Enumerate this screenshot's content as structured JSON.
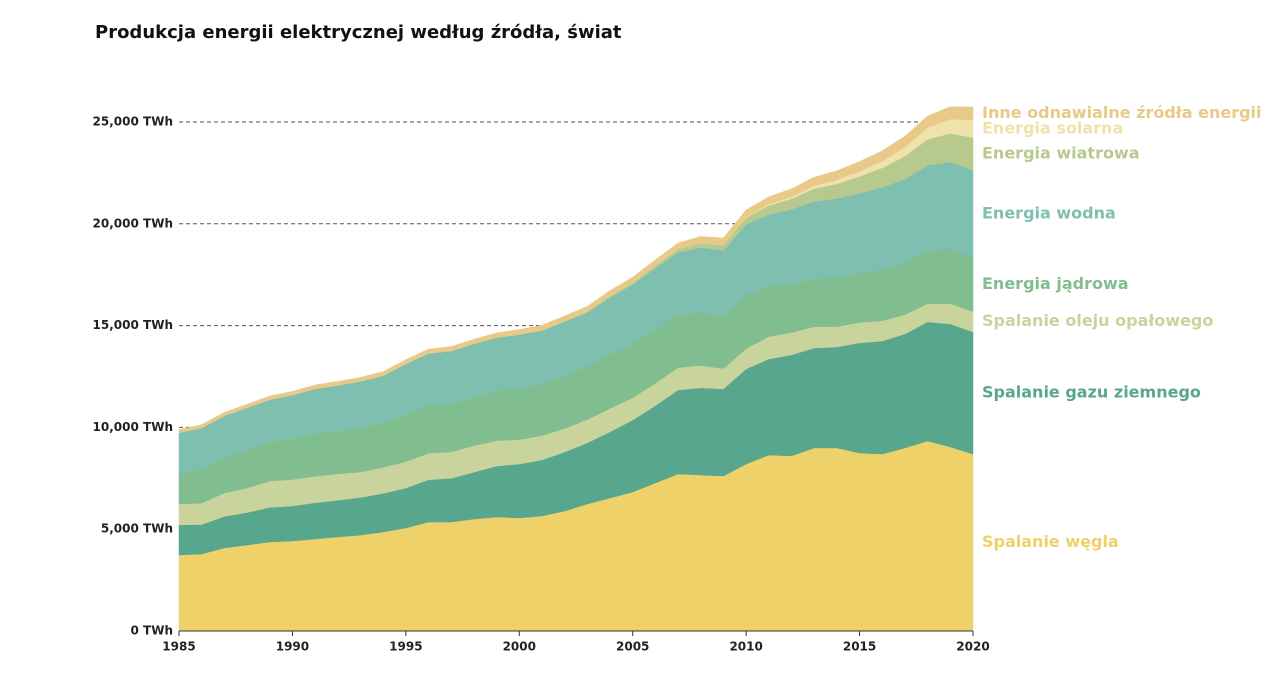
{
  "chart_data": {
    "type": "stacked-area",
    "title": "Produkcja energii elektrycznej według źródła, świat",
    "x": [
      1985,
      1986,
      1987,
      1988,
      1989,
      1990,
      1991,
      1992,
      1993,
      1994,
      1995,
      1996,
      1997,
      1998,
      1999,
      2000,
      2001,
      2002,
      2003,
      2004,
      2005,
      2006,
      2007,
      2008,
      2009,
      2010,
      2011,
      2012,
      2013,
      2014,
      2015,
      2016,
      2017,
      2018,
      2019,
      2020
    ],
    "xlim": [
      1985,
      2020
    ],
    "xticks": [
      1985,
      1990,
      1995,
      2000,
      2005,
      2010,
      2015,
      2020
    ],
    "ylim": [
      0,
      25000
    ],
    "yticks": [
      {
        "value": 0,
        "label": "0 TWh"
      },
      {
        "value": 5000,
        "label": "5,000 TWh"
      },
      {
        "value": 10000,
        "label": "10,000 TWh"
      },
      {
        "value": 15000,
        "label": "15,000 TWh"
      },
      {
        "value": 20000,
        "label": "20,000 TWh"
      },
      {
        "value": 25000,
        "label": "25,000 TWh"
      }
    ],
    "grid": true,
    "series": [
      {
        "name": "Spalanie węgla",
        "color": "#efd16a",
        "values": [
          3730,
          3780,
          4080,
          4220,
          4370,
          4420,
          4520,
          4620,
          4710,
          4860,
          5060,
          5350,
          5350,
          5500,
          5600,
          5550,
          5650,
          5890,
          6240,
          6530,
          6830,
          7270,
          7710,
          7660,
          7610,
          8200,
          8640,
          8600,
          8990,
          8990,
          8740,
          8690,
          8990,
          9330,
          9040,
          8690
        ]
      },
      {
        "name": "Spalanie gazu ziemnego",
        "color": "#58a68e",
        "values": [
          1480,
          1450,
          1550,
          1600,
          1700,
          1720,
          1780,
          1800,
          1850,
          1900,
          1960,
          2080,
          2150,
          2300,
          2500,
          2650,
          2750,
          2900,
          3000,
          3250,
          3530,
          3800,
          4130,
          4280,
          4280,
          4670,
          4720,
          4960,
          4910,
          4960,
          5410,
          5550,
          5600,
          5850,
          6040,
          6000
        ]
      },
      {
        "name": "Spalanie oleju opałowego",
        "color": "#c9d39c",
        "values": [
          1030,
          1050,
          1150,
          1200,
          1300,
          1300,
          1300,
          1300,
          1250,
          1280,
          1300,
          1300,
          1300,
          1300,
          1250,
          1200,
          1200,
          1150,
          1150,
          1150,
          1100,
          1100,
          1100,
          1100,
          1000,
          1000,
          1100,
          1100,
          1050,
          1000,
          1000,
          1000,
          950,
          900,
          1000,
          1000
        ]
      },
      {
        "name": "Energia jądrowa",
        "color": "#80bd8f",
        "values": [
          1500,
          1650,
          1750,
          1850,
          1900,
          2000,
          2100,
          2100,
          2150,
          2200,
          2300,
          2350,
          2350,
          2400,
          2450,
          2500,
          2550,
          2600,
          2600,
          2650,
          2650,
          2650,
          2600,
          2600,
          2550,
          2650,
          2500,
          2350,
          2350,
          2400,
          2450,
          2500,
          2550,
          2600,
          2700,
          2650
        ]
      },
      {
        "name": "Energia wodna",
        "color": "#7fbfb0",
        "values": [
          2000,
          2050,
          2050,
          2100,
          2100,
          2150,
          2200,
          2250,
          2300,
          2300,
          2500,
          2550,
          2600,
          2600,
          2600,
          2650,
          2600,
          2650,
          2650,
          2800,
          2900,
          3000,
          3050,
          3200,
          3250,
          3450,
          3500,
          3700,
          3800,
          3900,
          3900,
          4050,
          4100,
          4200,
          4250,
          4300
        ]
      },
      {
        "name": "Energia wiatrowa",
        "color": "#b8c98e",
        "values": [
          0,
          0,
          0,
          0,
          0,
          4,
          4,
          5,
          6,
          7,
          8,
          9,
          12,
          16,
          21,
          31,
          38,
          52,
          63,
          85,
          104,
          132,
          171,
          221,
          276,
          342,
          437,
          521,
          636,
          712,
          831,
          957,
          1135,
          1269,
          1414,
          1592
        ]
      },
      {
        "name": "Energia solarna",
        "color": "#efe2ab",
        "values": [
          0,
          0,
          0,
          0,
          0,
          0,
          0,
          0,
          0,
          0,
          0,
          0,
          0,
          0,
          0,
          0,
          0,
          0,
          0,
          0,
          4,
          6,
          8,
          12,
          20,
          32,
          63,
          97,
          134,
          190,
          251,
          327,
          443,
          576,
          704,
          855
        ]
      },
      {
        "name": "Inne odnawialne źródła energii",
        "color": "#e8c987",
        "values": [
          150,
          155,
          160,
          165,
          170,
          175,
          180,
          185,
          190,
          195,
          200,
          205,
          210,
          215,
          220,
          225,
          230,
          235,
          245,
          255,
          265,
          275,
          290,
          305,
          320,
          340,
          370,
          390,
          420,
          450,
          480,
          510,
          540,
          570,
          600,
          650
        ]
      }
    ]
  }
}
